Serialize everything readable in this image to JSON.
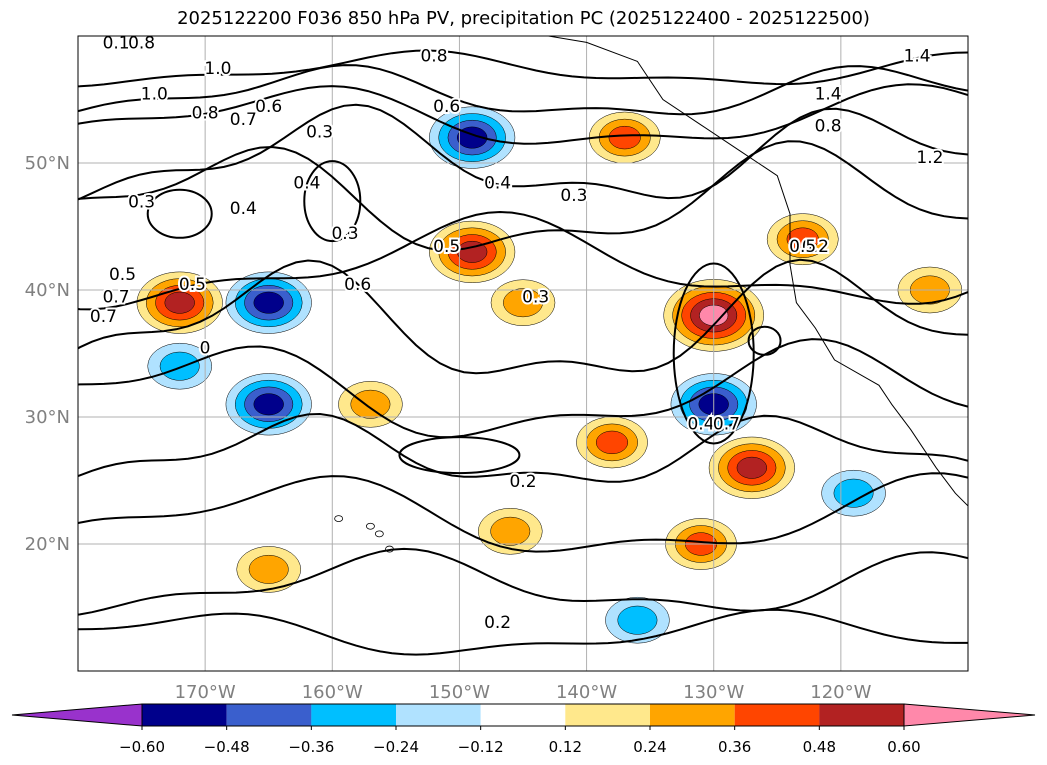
{
  "chart_data": {
    "type": "contour_map",
    "title": "2025122200 F036 850 hPa PV, precipitation PC (2025122400 - 2025122500)",
    "map": {
      "lon_range": [
        180,
        110
      ],
      "lat_range": [
        10,
        60
      ],
      "lon_ticks": [
        "170°W",
        "160°W",
        "150°W",
        "140°W",
        "130°W",
        "120°W"
      ],
      "lat_ticks": [
        "50°N",
        "40°N",
        "30°N",
        "20°N"
      ],
      "grid": true
    },
    "contours": {
      "variable": "850 hPa PV",
      "labels": [
        "0.1",
        "0.8",
        "1.0",
        "1.0",
        "0.8",
        "0.7",
        "0.6",
        "0.4",
        "0.3",
        "0.3",
        "0.4",
        "0.3",
        "0.6",
        "0.7",
        "0.5",
        "0.5",
        "0.4",
        "0.3",
        "0.8",
        "1.4",
        "1.4",
        "0.8",
        "1.2",
        "0.2",
        "0.3",
        "0.2",
        "0.2",
        "0.5",
        "0.4",
        "0.7",
        "0.6",
        "0.7",
        "0.5",
        "0"
      ]
    },
    "colorbar": {
      "ticks": [
        "−0.60",
        "−0.48",
        "−0.36",
        "−0.24",
        "−0.12",
        "0.12",
        "0.24",
        "0.36",
        "0.48",
        "0.60"
      ],
      "levels": [
        -0.6,
        -0.48,
        -0.36,
        -0.24,
        -0.12,
        0.12,
        0.24,
        0.36,
        0.48,
        0.6
      ],
      "colors": [
        "#9932cc",
        "#00008b",
        "#3a5fcd",
        "#00bfff",
        "#b0e2ff",
        "#ffffff",
        "#ffe88c",
        "#ffa500",
        "#ff4500",
        "#b22222",
        "#ff88aa"
      ],
      "extend": "both"
    },
    "anomaly_regions": [
      {
        "lon": -172,
        "lat": 39,
        "value": 0.48
      },
      {
        "lon": -165,
        "lat": 39,
        "value": -0.48
      },
      {
        "lon": -172,
        "lat": 34,
        "value": -0.3
      },
      {
        "lon": -165,
        "lat": 31,
        "value": -0.48
      },
      {
        "lon": -149,
        "lat": 52,
        "value": -0.48
      },
      {
        "lon": -149,
        "lat": 43,
        "value": 0.48
      },
      {
        "lon": -130,
        "lat": 38,
        "value": 0.6
      },
      {
        "lon": -130,
        "lat": 31,
        "value": -0.48
      },
      {
        "lon": -127,
        "lat": 26,
        "value": 0.48
      },
      {
        "lon": -137,
        "lat": 52,
        "value": 0.36
      },
      {
        "lon": -145,
        "lat": 39,
        "value": 0.3
      },
      {
        "lon": -146,
        "lat": 21,
        "value": 0.3
      },
      {
        "lon": -131,
        "lat": 20,
        "value": 0.36
      },
      {
        "lon": -138,
        "lat": 28,
        "value": 0.36
      },
      {
        "lon": -123,
        "lat": 44,
        "value": 0.36
      },
      {
        "lon": -113,
        "lat": 40,
        "value": 0.3
      },
      {
        "lon": -119,
        "lat": 24,
        "value": -0.3
      },
      {
        "lon": -157,
        "lat": 31,
        "value": 0.3
      },
      {
        "lon": -165,
        "lat": 18,
        "value": 0.3
      },
      {
        "lon": -136,
        "lat": 14,
        "value": -0.3
      }
    ]
  }
}
